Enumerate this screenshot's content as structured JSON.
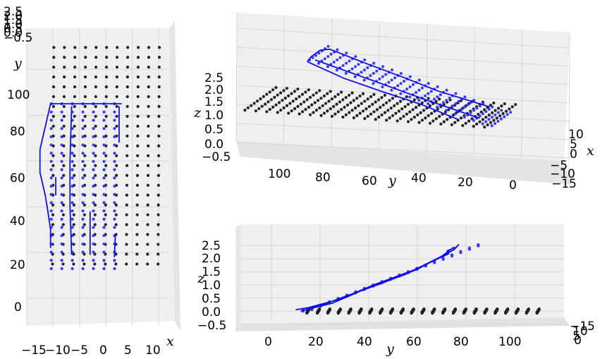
{
  "chart_data": [
    {
      "type": "scatter",
      "view": "top",
      "xlabel": "x",
      "ylabel": "y",
      "x_ticks": [
        "−15",
        "−10",
        "−5",
        "0",
        "5",
        "10"
      ],
      "y_ticks": [
        "0",
        "20",
        "40",
        "60",
        "80",
        "100"
      ],
      "z_ticks": [
        "2.5",
        "2.0",
        "1.5",
        "1.0",
        "0.5",
        "0.0",
        "−0.5"
      ],
      "xlim": [
        -15,
        12
      ],
      "ylim": [
        -12,
        118
      ]
    },
    {
      "type": "scatter",
      "view": "oblique",
      "xlabel": "x",
      "ylabel": "y",
      "zlabel": "z",
      "x_ticks": [
        "10",
        "5",
        "0",
        "−5",
        "−10",
        "−15"
      ],
      "y_ticks": [
        "100",
        "80",
        "60",
        "40",
        "20",
        "0"
      ],
      "z_ticks": [
        "2.5",
        "2.0",
        "1.5",
        "1.0",
        "0.5",
        "0.0",
        "−0.5"
      ]
    },
    {
      "type": "scatter",
      "view": "side",
      "xlabel": "y",
      "zlabel": "z",
      "y_ticks": [
        "0",
        "20",
        "40",
        "60",
        "80",
        "100"
      ],
      "z_ticks": [
        "2.5",
        "2.0",
        "1.5",
        "1.0",
        "0.5",
        "0.0",
        "−0.5"
      ],
      "x_ticks": [
        "−15",
        "10",
        "5",
        "0"
      ]
    }
  ],
  "series": {
    "grid_points": {
      "color": "#222222",
      "x_values": [
        -10,
        -8,
        -6,
        -4,
        -2,
        0,
        2,
        4,
        6,
        8,
        10
      ],
      "y_from": 15,
      "y_to": 110,
      "y_step": 4.3,
      "z": 0
    },
    "cloth_points": {
      "color": "#3a3af5",
      "x_values": [
        -10.5,
        -8.5,
        -6.5,
        -4.5,
        -2.5,
        -0.5,
        1.5
      ],
      "y_from": 13,
      "y_to": 86,
      "y_step": 3.6
    },
    "cloth_curves": {
      "color": "#1010e6"
    }
  },
  "colors": {
    "pane_left": "#ebebeb",
    "pane_right": "#f2f2f2",
    "pane_floor": "#e6e6e6",
    "grid": "#d6d6d6"
  }
}
